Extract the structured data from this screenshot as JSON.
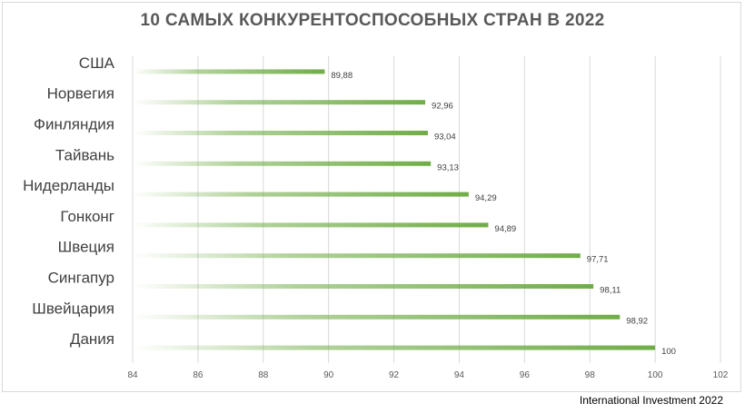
{
  "chart_data": {
    "type": "bar",
    "orientation": "horizontal",
    "title": "10 САМЫХ КОНКУРЕНТОСПОСОБНЫХ СТРАН В 2022",
    "categories": [
      "США",
      "Норвегия",
      "Финляндия",
      "Тайвань",
      "Нидерланды",
      "Гонконг",
      "Швеция",
      "Сингапур",
      "Швейцария",
      "Дания"
    ],
    "values": [
      89.88,
      92.96,
      93.04,
      93.13,
      94.29,
      94.89,
      97.71,
      98.11,
      98.92,
      100
    ],
    "value_labels": [
      "89,88",
      "92,96",
      "93,04",
      "93,13",
      "94,29",
      "94,89",
      "97,71",
      "98,11",
      "98,92",
      "100"
    ],
    "xlim": [
      84,
      102
    ],
    "xticks": [
      84,
      86,
      88,
      90,
      92,
      94,
      96,
      98,
      100,
      102
    ],
    "grid": "vertical",
    "bar_color": "#70ad47",
    "xlabel": "",
    "ylabel": ""
  },
  "source": "International Investment 2022"
}
